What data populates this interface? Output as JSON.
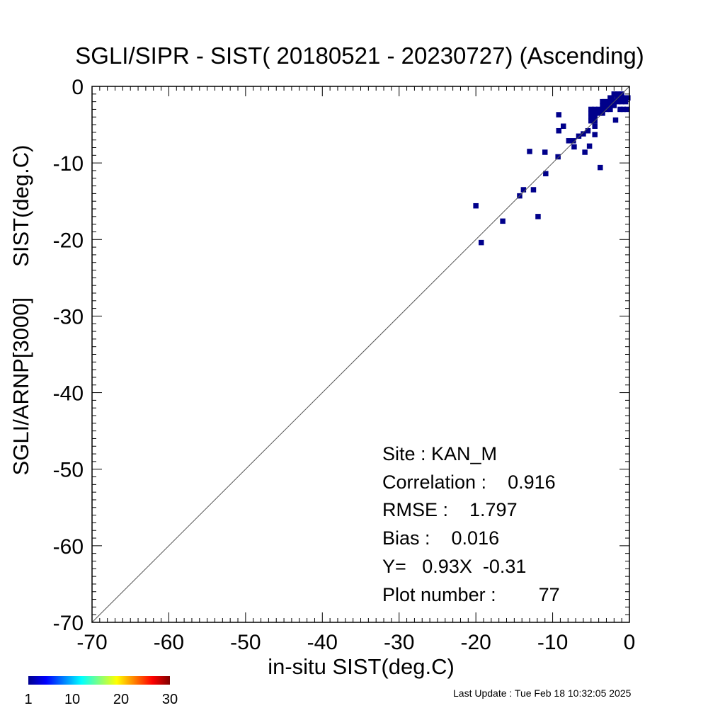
{
  "chart_data": {
    "type": "scatter",
    "title": "SGLI/SIPR - SIST( 20180521 - 20230727) (Ascending)",
    "xlabel": "in-situ SIST(deg.C)",
    "ylabel": "SGLI/ARNP[3000]     SIST(deg.C)",
    "xlim": [
      -70,
      0
    ],
    "ylim": [
      -70,
      0
    ],
    "xticks": [
      "-70",
      "-60",
      "-50",
      "-40",
      "-30",
      "-20",
      "-10",
      "0"
    ],
    "yticks": [
      "0",
      "-10",
      "-20",
      "-30",
      "-40",
      "-50",
      "-60",
      "-70"
    ],
    "grid": false,
    "one_to_one_line": true,
    "point_color": "#00008b",
    "points": [
      [
        -20.0,
        -15.6
      ],
      [
        -19.3,
        -20.4
      ],
      [
        -16.5,
        -17.6
      ],
      [
        -14.3,
        -14.3
      ],
      [
        -13.8,
        -13.5
      ],
      [
        -13.0,
        -8.5
      ],
      [
        -12.5,
        -13.5
      ],
      [
        -11.9,
        -17.0
      ],
      [
        -11.0,
        -8.6
      ],
      [
        -10.9,
        -11.4
      ],
      [
        -9.3,
        -9.2
      ],
      [
        -9.2,
        -5.8
      ],
      [
        -9.2,
        -3.7
      ],
      [
        -8.6,
        -5.2
      ],
      [
        -7.9,
        -7.1
      ],
      [
        -7.3,
        -7.1
      ],
      [
        -7.2,
        -7.9
      ],
      [
        -6.6,
        -6.5
      ],
      [
        -6.0,
        -6.2
      ],
      [
        -5.8,
        -8.6
      ],
      [
        -5.4,
        -5.8
      ],
      [
        -5.2,
        -7.8
      ],
      [
        -5.0,
        -3.0
      ],
      [
        -5.0,
        -3.5
      ],
      [
        -5.0,
        -4.0
      ],
      [
        -5.0,
        -4.5
      ],
      [
        -4.5,
        -3.0
      ],
      [
        -4.5,
        -3.5
      ],
      [
        -4.5,
        -4.0
      ],
      [
        -4.5,
        -4.5
      ],
      [
        -4.5,
        -5.2
      ],
      [
        -4.5,
        -6.3
      ],
      [
        -4.0,
        -3.0
      ],
      [
        -4.0,
        -3.5
      ],
      [
        -3.8,
        -10.6
      ],
      [
        -3.5,
        -2.0
      ],
      [
        -3.5,
        -2.5
      ],
      [
        -3.5,
        -3.0
      ],
      [
        -3.5,
        -3.5
      ],
      [
        -3.2,
        -2.0
      ],
      [
        -3.0,
        -2.5
      ],
      [
        -3.0,
        -3.0
      ],
      [
        -2.8,
        -2.0
      ],
      [
        -2.5,
        -1.5
      ],
      [
        -2.5,
        -2.0
      ],
      [
        -2.5,
        -2.5
      ],
      [
        -2.5,
        -3.0
      ],
      [
        -2.2,
        -1.5
      ],
      [
        -2.0,
        -1.0
      ],
      [
        -2.0,
        -2.0
      ],
      [
        -2.0,
        -2.5
      ],
      [
        -1.8,
        -4.4
      ],
      [
        -1.5,
        -1.0
      ],
      [
        -1.5,
        -1.5
      ],
      [
        -1.5,
        -2.0
      ],
      [
        -1.2,
        -3.0
      ],
      [
        -1.0,
        -1.0
      ],
      [
        -1.0,
        -1.5
      ],
      [
        -1.0,
        -2.0
      ],
      [
        -0.8,
        -3.0
      ],
      [
        -0.5,
        -1.5
      ],
      [
        -0.5,
        -2.0
      ],
      [
        -0.3,
        -3.0
      ],
      [
        -0.2,
        -1.5
      ]
    ],
    "stats": {
      "site_line": "Site : KAN_M",
      "correlation_line": "Correlation :    0.916",
      "rmse_line": "RMSE :    1.797",
      "bias_line": "Bias :    0.016",
      "regression_line": "Y=   0.93X  -0.31",
      "plot_number_line": "Plot number :        77"
    },
    "colorbar": {
      "min": 1,
      "max": 30,
      "tick_labels": [
        "1",
        "10",
        "20",
        "30"
      ],
      "colors": [
        "#00008f",
        "#0000ff",
        "#0080ff",
        "#00ffff",
        "#80ff80",
        "#ffff00",
        "#ff8000",
        "#ff0000",
        "#800000"
      ]
    }
  },
  "footer": {
    "last_update": "Last Update : Tue Feb 18 10:32:05 2025"
  }
}
